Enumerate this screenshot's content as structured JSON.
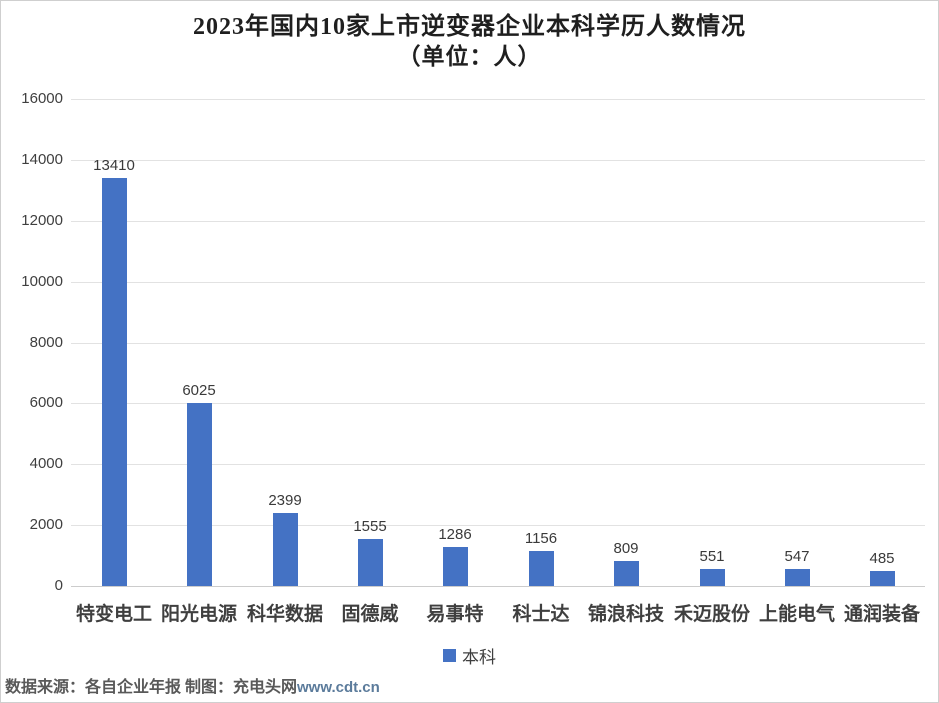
{
  "page": {
    "title_line1": "2023年国内10家上市逆变器企业本科学历人数情况",
    "title_line2": "（单位：人）",
    "footer": {
      "source_text": "数据来源：各自企业年报 制图：充电头网",
      "site_text": "www.cdt.cn"
    }
  },
  "chart_data": {
    "type": "bar",
    "title": "2023年国内10家上市逆变器企业本科学历人数情况（单位：人）",
    "categories": [
      "特变电工",
      "阳光电源",
      "科华数据",
      "固德威",
      "易事特",
      "科士达",
      "锦浪科技",
      "禾迈股份",
      "上能电气",
      "通润装备"
    ],
    "series": [
      {
        "name": "本科",
        "values": [
          13410,
          6025,
          2399,
          1555,
          1286,
          1156,
          809,
          551,
          547,
          485
        ]
      }
    ],
    "xlabel": "",
    "ylabel": "",
    "ylim": [
      0,
      16000
    ],
    "ytick_step": 2000,
    "grid": true,
    "data_labels": true,
    "legend_position": "bottom",
    "bar_color": "#4472C4"
  },
  "colors": {
    "bar": "#4472C4",
    "gridline": "#e2e2e2",
    "axis_text": "#3f3f3f",
    "title_text": "#1f1f1f",
    "footer_text": "#595959",
    "site_link": "#5b7b9b"
  }
}
